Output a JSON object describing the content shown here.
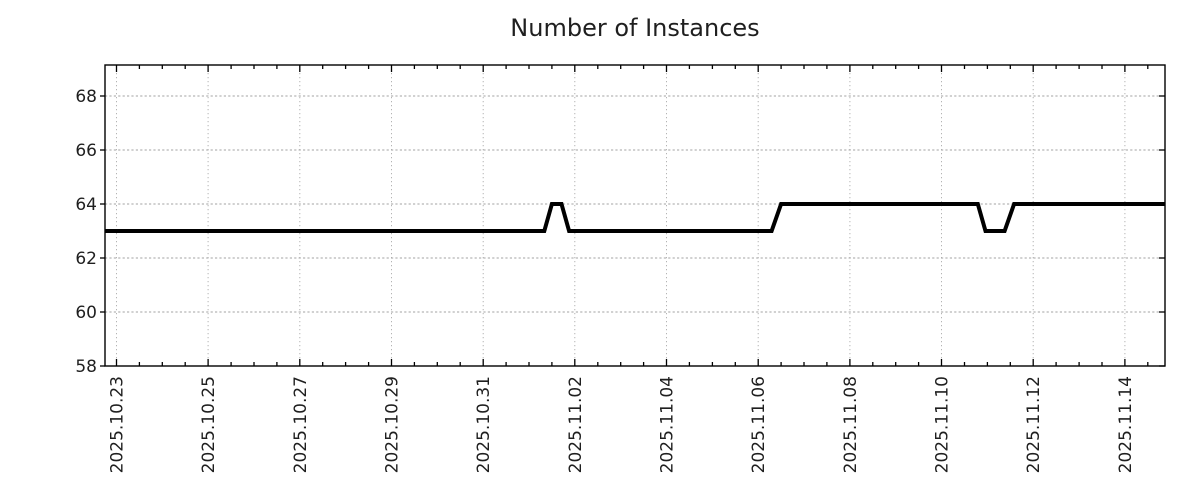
{
  "chart_data": {
    "type": "line",
    "title": "Number of Instances",
    "xlabel": "",
    "ylabel": "",
    "grid": "dotted",
    "legend": "none",
    "x_axis": {
      "start": "2025-10-22 18:00",
      "end": "2025-11-14 21:00",
      "major_tick_labels": [
        "2025.10.23",
        "2025.10.25",
        "2025.10.27",
        "2025.10.29",
        "2025.10.31",
        "2025.11.02",
        "2025.11.04",
        "2025.11.06",
        "2025.11.08",
        "2025.11.10",
        "2025.11.12",
        "2025.11.14"
      ],
      "minor_tick_interval_days": 0.5
    },
    "y_axis": {
      "ylim": [
        58,
        69.15
      ],
      "major_ticks": [
        58,
        60,
        62,
        64,
        66,
        68
      ]
    },
    "series": [
      {
        "name": "instances",
        "color": "#000000",
        "points": [
          [
            "2025-10-22 18:00",
            63
          ],
          [
            "2025-11-01 08:00",
            63
          ],
          [
            "2025-11-01 12:00",
            64
          ],
          [
            "2025-11-01 17:00",
            64
          ],
          [
            "2025-11-01 21:00",
            63
          ],
          [
            "2025-11-06 07:00",
            63
          ],
          [
            "2025-11-06 12:00",
            64
          ],
          [
            "2025-11-10 19:00",
            64
          ],
          [
            "2025-11-10 23:00",
            63
          ],
          [
            "2025-11-11 09:00",
            63
          ],
          [
            "2025-11-11 14:00",
            64
          ],
          [
            "2025-11-14 21:00",
            64
          ]
        ]
      }
    ],
    "styles": {
      "line_color": "#000000",
      "line_width": 4,
      "axis_color": "#000000",
      "grid_color_h": "#a3a3a3",
      "grid_color_v": "#b4b4b4",
      "text_color": "#1f1f1f"
    }
  }
}
